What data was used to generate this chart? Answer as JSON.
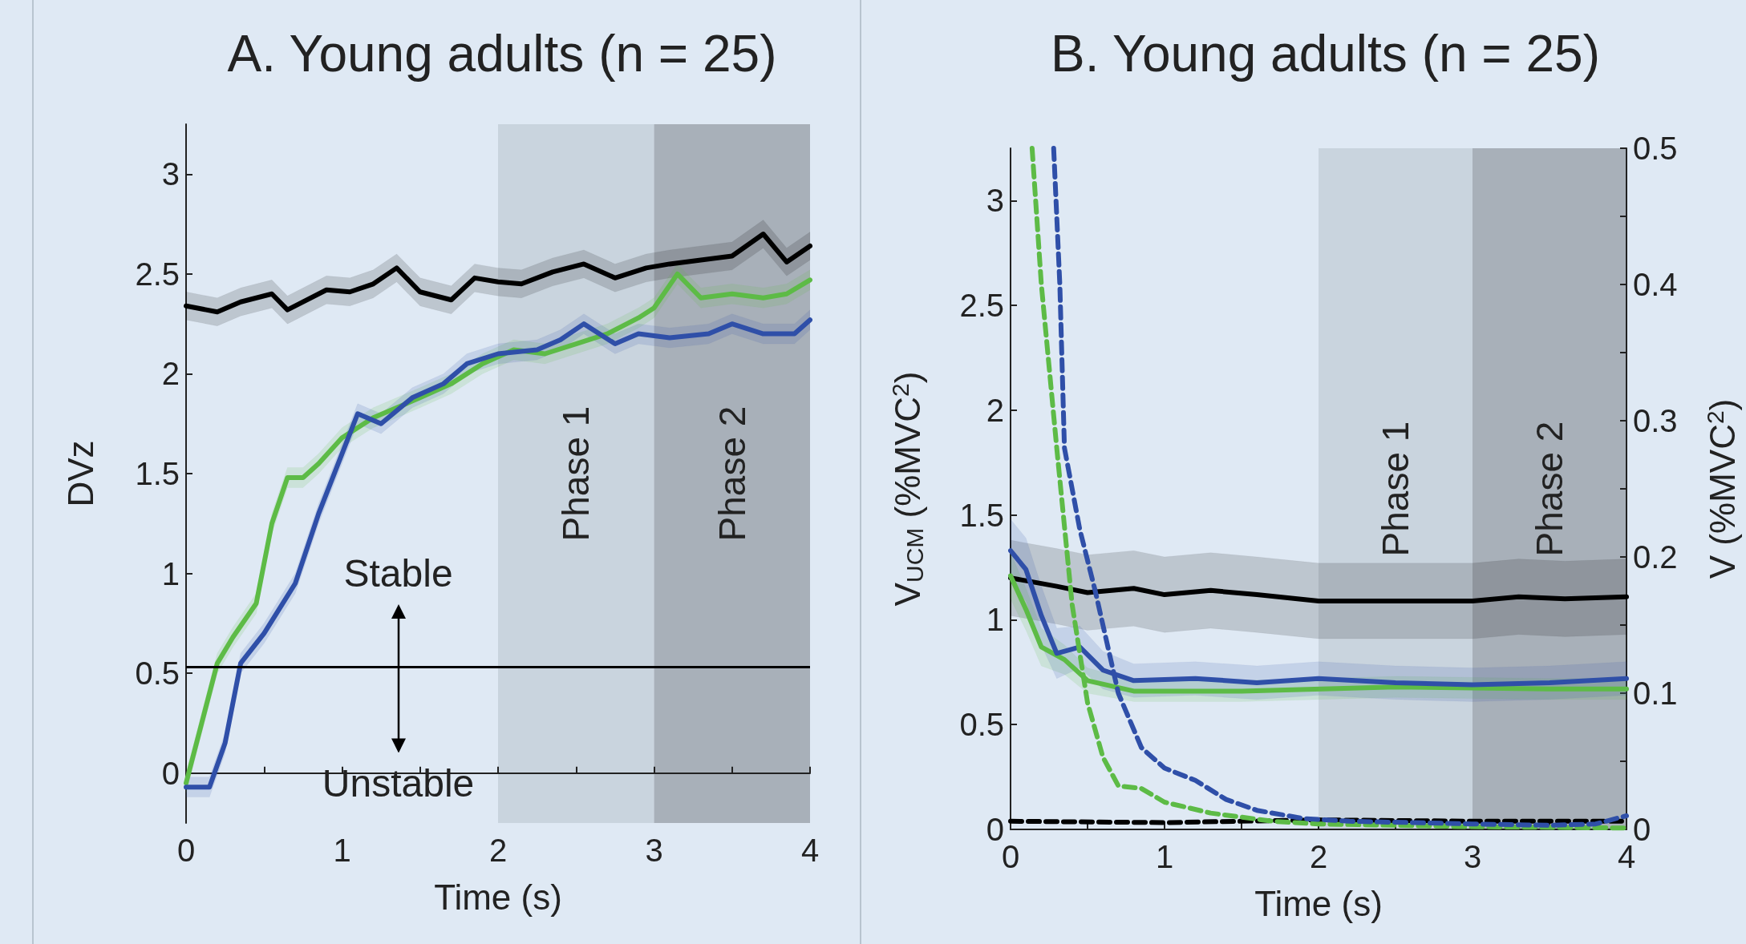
{
  "chart_data": [
    {
      "type": "line",
      "title": "A. Young adults (n = 25)",
      "xlabel": "Time (s)",
      "ylabel": "DVz",
      "marker": "none",
      "line_style": "solid",
      "grid": false,
      "xlim": [
        0,
        4
      ],
      "xticks": [
        0,
        {
          "value": 0.5,
          "label": null
        },
        1,
        {
          "value": 1.5,
          "label": null
        },
        2,
        {
          "value": 2.5,
          "label": null
        },
        3,
        {
          "value": 3.5,
          "label": null
        },
        4
      ],
      "ylim": [
        -0.25,
        3.25
      ],
      "yticks": [
        0,
        0.5,
        1,
        1.5,
        2,
        2.5,
        3
      ],
      "series": [
        {
          "color": "#000000",
          "x": [
            0,
            0.2,
            0.35,
            0.55,
            0.65,
            0.9,
            1.05,
            1.2,
            1.35,
            1.5,
            1.7,
            1.85,
            2.0,
            2.15,
            2.35,
            2.55,
            2.75,
            2.95,
            3.1,
            3.3,
            3.5,
            3.7,
            3.85,
            4.0
          ],
          "values": [
            2.34,
            2.31,
            2.36,
            2.4,
            2.32,
            2.42,
            2.41,
            2.45,
            2.53,
            2.41,
            2.37,
            2.48,
            2.46,
            2.45,
            2.51,
            2.55,
            2.48,
            2.53,
            2.55,
            2.57,
            2.59,
            2.7,
            2.56,
            2.64
          ],
          "lower": [
            2.27,
            2.24,
            2.29,
            2.33,
            2.25,
            2.35,
            2.34,
            2.38,
            2.46,
            2.34,
            2.3,
            2.41,
            2.39,
            2.38,
            2.44,
            2.48,
            2.41,
            2.46,
            2.48,
            2.5,
            2.52,
            2.63,
            2.49,
            2.57
          ],
          "upper": [
            2.41,
            2.38,
            2.43,
            2.47,
            2.39,
            2.49,
            2.48,
            2.52,
            2.6,
            2.48,
            2.44,
            2.55,
            2.53,
            2.52,
            2.58,
            2.62,
            2.55,
            2.6,
            2.62,
            2.64,
            2.66,
            2.77,
            2.63,
            2.71
          ]
        },
        {
          "color": "#5dbb46",
          "x": [
            0,
            0.1,
            0.2,
            0.3,
            0.45,
            0.55,
            0.65,
            0.75,
            0.85,
            1.0,
            1.2,
            1.5,
            1.7,
            1.9,
            2.1,
            2.3,
            2.5,
            2.7,
            2.9,
            3.0,
            3.15,
            3.3,
            3.5,
            3.7,
            3.85,
            4.0
          ],
          "values": [
            -0.05,
            0.25,
            0.55,
            0.68,
            0.85,
            1.25,
            1.48,
            1.48,
            1.55,
            1.68,
            1.78,
            1.88,
            1.95,
            2.05,
            2.12,
            2.1,
            2.15,
            2.2,
            2.28,
            2.33,
            2.5,
            2.38,
            2.4,
            2.38,
            2.4,
            2.47
          ],
          "lower": [
            -0.1,
            0.2,
            0.5,
            0.63,
            0.8,
            1.2,
            1.43,
            1.43,
            1.5,
            1.63,
            1.73,
            1.83,
            1.9,
            2.0,
            2.07,
            2.05,
            2.1,
            2.15,
            2.23,
            2.28,
            2.45,
            2.33,
            2.35,
            2.33,
            2.35,
            2.42
          ],
          "upper": [
            0,
            0.3,
            0.6,
            0.73,
            0.9,
            1.3,
            1.53,
            1.53,
            1.6,
            1.73,
            1.83,
            1.93,
            2.0,
            2.1,
            2.17,
            2.15,
            2.2,
            2.25,
            2.33,
            2.38,
            2.55,
            2.43,
            2.45,
            2.43,
            2.45,
            2.52
          ]
        },
        {
          "color": "#2f4fa8",
          "x": [
            0,
            0.15,
            0.25,
            0.35,
            0.5,
            0.7,
            0.85,
            1.0,
            1.1,
            1.25,
            1.45,
            1.65,
            1.8,
            2.0,
            2.25,
            2.4,
            2.55,
            2.75,
            2.9,
            3.1,
            3.35,
            3.5,
            3.7,
            3.9,
            4.0
          ],
          "values": [
            -0.07,
            -0.07,
            0.15,
            0.55,
            0.7,
            0.95,
            1.3,
            1.6,
            1.8,
            1.75,
            1.88,
            1.95,
            2.05,
            2.1,
            2.12,
            2.17,
            2.25,
            2.15,
            2.2,
            2.18,
            2.2,
            2.25,
            2.2,
            2.2,
            2.27
          ],
          "lower": [
            -0.12,
            -0.12,
            0.1,
            0.5,
            0.65,
            0.9,
            1.25,
            1.55,
            1.75,
            1.7,
            1.83,
            1.9,
            2.0,
            2.05,
            2.07,
            2.12,
            2.2,
            2.1,
            2.15,
            2.13,
            2.15,
            2.2,
            2.15,
            2.15,
            2.22
          ],
          "upper": [
            -0.02,
            -0.02,
            0.2,
            0.6,
            0.75,
            1.0,
            1.35,
            1.65,
            1.85,
            1.8,
            1.93,
            2.0,
            2.1,
            2.15,
            2.17,
            2.22,
            2.3,
            2.2,
            2.25,
            2.23,
            2.25,
            2.3,
            2.25,
            2.25,
            2.32
          ]
        }
      ],
      "ref_lines": [
        {
          "axis": "y",
          "value": 0.53,
          "color": "#000000",
          "line_style": "solid"
        }
      ],
      "bands": [
        {
          "axis": "x",
          "from": 2,
          "to": 3,
          "label": "Phase 1",
          "color": "#c9d4de"
        },
        {
          "axis": "x",
          "from": 3,
          "to": 4,
          "label": "Phase 2",
          "color": "#a8b0b9"
        }
      ],
      "annotations": [
        "Stable",
        "Unstable"
      ]
    },
    {
      "type": "line",
      "title": "B. Young adults (n = 25)",
      "xlabel": "Time (s)",
      "ylabel": "V$_{UCM}$ (%MVC$^{2}$)",
      "y2label": "V (%MVC$^{2}$)",
      "marker": "none",
      "grid": false,
      "xlim": [
        0,
        4
      ],
      "xticks": [
        0,
        {
          "value": 0.5,
          "label": null
        },
        1,
        {
          "value": 1.5,
          "label": null
        },
        2,
        {
          "value": 2.5,
          "label": null
        },
        3,
        {
          "value": 3.5,
          "label": null
        },
        4
      ],
      "ylim": [
        0,
        3.25
      ],
      "yticks": [
        0,
        0.5,
        1,
        1.5,
        2,
        2.5,
        3
      ],
      "y2lim": [
        0,
        0.5
      ],
      "y2ticks": [
        0,
        {
          "value": 0.05,
          "label": null
        },
        0.1,
        {
          "value": 0.15,
          "label": null
        },
        0.2,
        {
          "value": 0.25,
          "label": null
        },
        0.3,
        {
          "value": 0.35,
          "label": null
        },
        0.4,
        {
          "value": 0.45,
          "label": null
        },
        0.5
      ],
      "series": [
        {
          "color": "#000000",
          "line_style": "solid",
          "x": [
            0,
            0.3,
            0.5,
            0.8,
            1.0,
            1.3,
            1.6,
            2.0,
            2.5,
            3.0,
            3.3,
            3.6,
            4.0
          ],
          "values": [
            1.2,
            1.16,
            1.13,
            1.15,
            1.12,
            1.14,
            1.12,
            1.09,
            1.09,
            1.09,
            1.11,
            1.1,
            1.11
          ],
          "lower": [
            1.02,
            0.98,
            0.95,
            0.97,
            0.94,
            0.96,
            0.94,
            0.91,
            0.91,
            0.91,
            0.93,
            0.92,
            0.93
          ],
          "upper": [
            1.38,
            1.34,
            1.31,
            1.33,
            1.3,
            1.32,
            1.3,
            1.27,
            1.27,
            1.27,
            1.29,
            1.28,
            1.29
          ]
        },
        {
          "color": "#5dbb46",
          "line_style": "solid",
          "x": [
            0,
            0.1,
            0.2,
            0.35,
            0.5,
            0.8,
            1.5,
            2.5,
            3.5,
            4.0
          ],
          "values": [
            1.21,
            1.05,
            0.87,
            0.81,
            0.71,
            0.66,
            0.66,
            0.68,
            0.67,
            0.67
          ],
          "lower": [
            1.1,
            0.95,
            0.78,
            0.74,
            0.65,
            0.61,
            0.61,
            0.63,
            0.62,
            0.62
          ],
          "upper": [
            1.32,
            1.15,
            0.96,
            0.88,
            0.77,
            0.71,
            0.71,
            0.73,
            0.72,
            0.72
          ]
        },
        {
          "color": "#2f4fa8",
          "line_style": "solid",
          "x": [
            0,
            0.1,
            0.2,
            0.3,
            0.45,
            0.6,
            0.8,
            1.2,
            1.6,
            2.0,
            2.5,
            3.0,
            3.5,
            4.0
          ],
          "values": [
            1.33,
            1.24,
            1.02,
            0.84,
            0.87,
            0.76,
            0.71,
            0.72,
            0.7,
            0.72,
            0.7,
            0.69,
            0.7,
            0.72
          ],
          "lower": [
            1.18,
            1.09,
            0.88,
            0.72,
            0.77,
            0.67,
            0.63,
            0.64,
            0.62,
            0.64,
            0.62,
            0.61,
            0.62,
            0.64
          ],
          "upper": [
            1.48,
            1.39,
            1.16,
            0.96,
            0.97,
            0.85,
            0.79,
            0.8,
            0.78,
            0.8,
            0.78,
            0.77,
            0.78,
            0.8
          ]
        },
        {
          "color": "#000000",
          "line_style": "dashed",
          "axis": "y2",
          "x": [
            0,
            1,
            2,
            3,
            4
          ],
          "values": [
            0.006,
            0.005,
            0.007,
            0.006,
            0.006
          ]
        },
        {
          "color": "#5dbb46",
          "line_style": "dashed",
          "axis": "y2",
          "x": [
            0.14,
            0.2,
            0.3,
            0.4,
            0.5,
            0.6,
            0.7,
            0.85,
            1.0,
            1.3,
            1.7,
            2.0,
            3.0,
            4.0
          ],
          "values": [
            0.5,
            0.4,
            0.28,
            0.165,
            0.093,
            0.053,
            0.032,
            0.03,
            0.02,
            0.012,
            0.006,
            0.004,
            0.002,
            0.001
          ]
        },
        {
          "color": "#2f4fa8",
          "line_style": "dashed",
          "axis": "y2",
          "x": [
            0.28,
            0.32,
            0.35,
            0.45,
            0.55,
            0.7,
            0.85,
            1.0,
            1.2,
            1.4,
            1.6,
            1.9,
            2.2,
            2.6,
            3.0,
            3.5,
            3.8,
            4.0
          ],
          "values": [
            0.5,
            0.4,
            0.28,
            0.22,
            0.175,
            0.1,
            0.06,
            0.045,
            0.036,
            0.022,
            0.014,
            0.008,
            0.006,
            0.005,
            0.004,
            0.003,
            0.004,
            0.01
          ]
        }
      ],
      "bands": [
        {
          "axis": "x",
          "from": 2,
          "to": 3,
          "label": "Phase 1",
          "color": "#c9d4de"
        },
        {
          "axis": "x",
          "from": 3,
          "to": 4,
          "label": "Phase 2",
          "color": "#a8b0b9"
        }
      ]
    }
  ]
}
